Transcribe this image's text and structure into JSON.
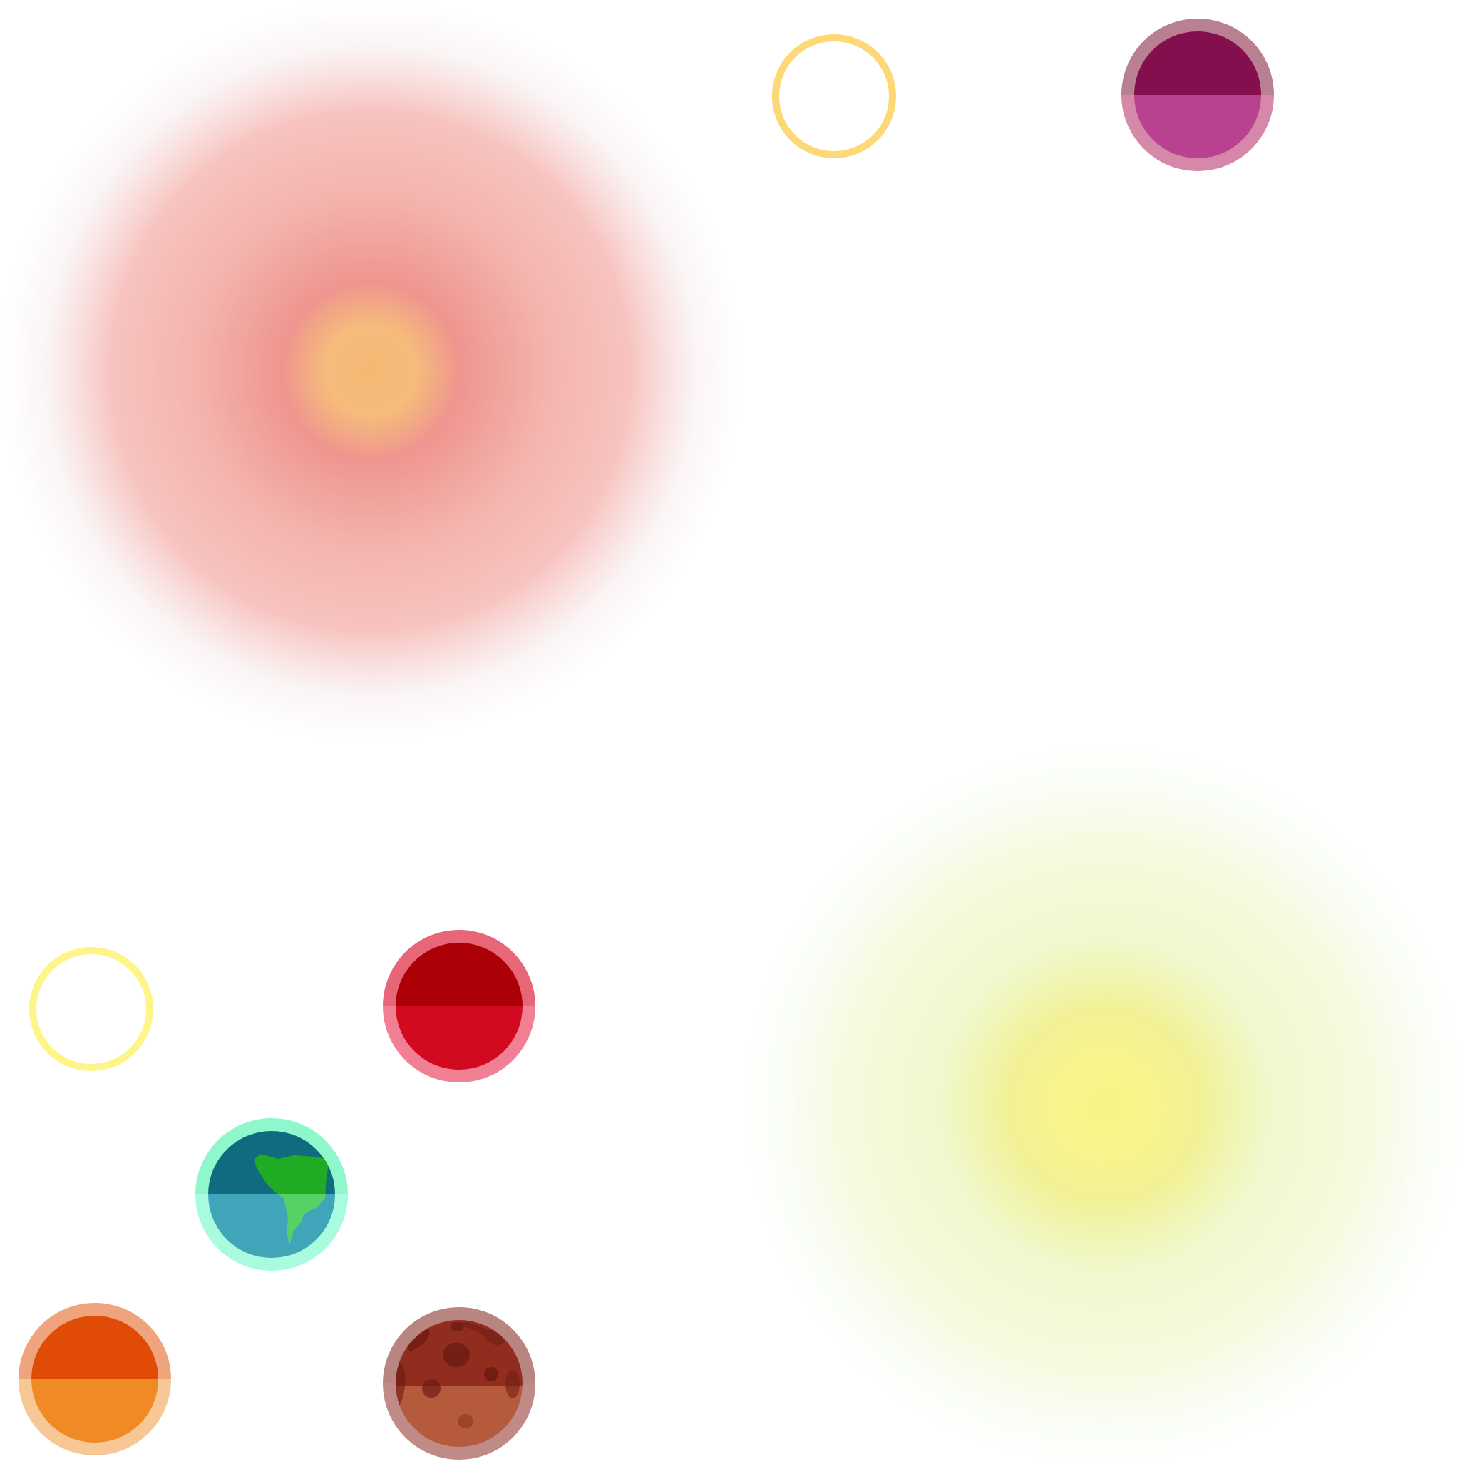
{
  "scene": {
    "background": "#ffffff",
    "stars": [
      {
        "id": "star-red-glow",
        "name": "red-giant-star",
        "core_color": "#f5b874",
        "mid_color": "#ee9089",
        "outer_color": "#f4b0aa",
        "edge_color": "#f8eef0"
      },
      {
        "id": "star-yellow-glow",
        "name": "yellow-star",
        "core_color": "#f7f486",
        "mid_color": "#f1ef8a",
        "outer_color": "#eef8c9",
        "edge_color": "#f4fbee"
      }
    ],
    "rings": [
      {
        "id": "ring-gold",
        "name": "gold-orbit-ring",
        "color": "#fcd877"
      },
      {
        "id": "ring-yellow",
        "name": "yellow-orbit-ring",
        "color": "#fdf588"
      }
    ],
    "planets": [
      {
        "id": "planet-magenta",
        "name": "magenta-planet",
        "rim_top": "#b88091",
        "rim_bottom": "#d688a9",
        "top_color": "#830f4f",
        "bottom_color": "#b94290"
      },
      {
        "id": "planet-red",
        "name": "red-planet",
        "rim_top": "#e76677",
        "rim_bottom": "#f28095",
        "top_color": "#ad0006",
        "bottom_color": "#d10a1f"
      },
      {
        "id": "planet-earth",
        "name": "earth-like-planet",
        "rim_top": "#8ef8cc",
        "rim_bottom": "#a9fbe0",
        "top_color": "#106a80",
        "bottom_color": "#40a5b8",
        "land_top": "#1fab24",
        "land_bottom": "#55d165"
      },
      {
        "id": "planet-orange",
        "name": "orange-planet",
        "rim_top": "#efa47e",
        "rim_bottom": "#f7c795",
        "top_color": "#e04c06",
        "bottom_color": "#ef8a24"
      },
      {
        "id": "planet-mars",
        "name": "cratered-mars-planet",
        "rim_top": "#b98580",
        "rim_bottom": "#c08b86",
        "top_color": "#902d1e",
        "bottom_color": "#b65a3d",
        "crater_color": "#6d1b12"
      }
    ]
  }
}
